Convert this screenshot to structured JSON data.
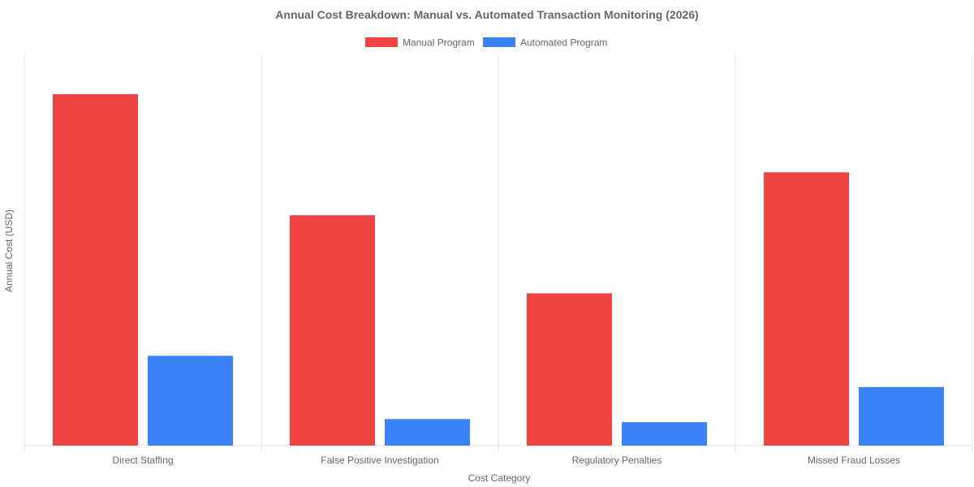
{
  "chart_data": {
    "type": "bar",
    "title": "Annual Cost Breakdown: Manual vs. Automated Transaction Monitoring (2026)",
    "xlabel": "Cost Category",
    "ylabel": "Annual Cost (USD)",
    "categories": [
      "Direct Staffing",
      "False Positive Investigation",
      "Regulatory Penalties",
      "Missed Fraud Losses"
    ],
    "series": [
      {
        "name": "Manual Program",
        "color": "#ef4444",
        "values": [
          4500000,
          2950000,
          1950000,
          3500000
        ]
      },
      {
        "name": "Automated Program",
        "color": "#3b82f6",
        "values": [
          1150000,
          340000,
          300000,
          750000
        ]
      }
    ],
    "ylim": [
      0,
      5000000
    ],
    "grid": true,
    "y_tick_labels_visible": false,
    "legend_position": "top-center"
  }
}
